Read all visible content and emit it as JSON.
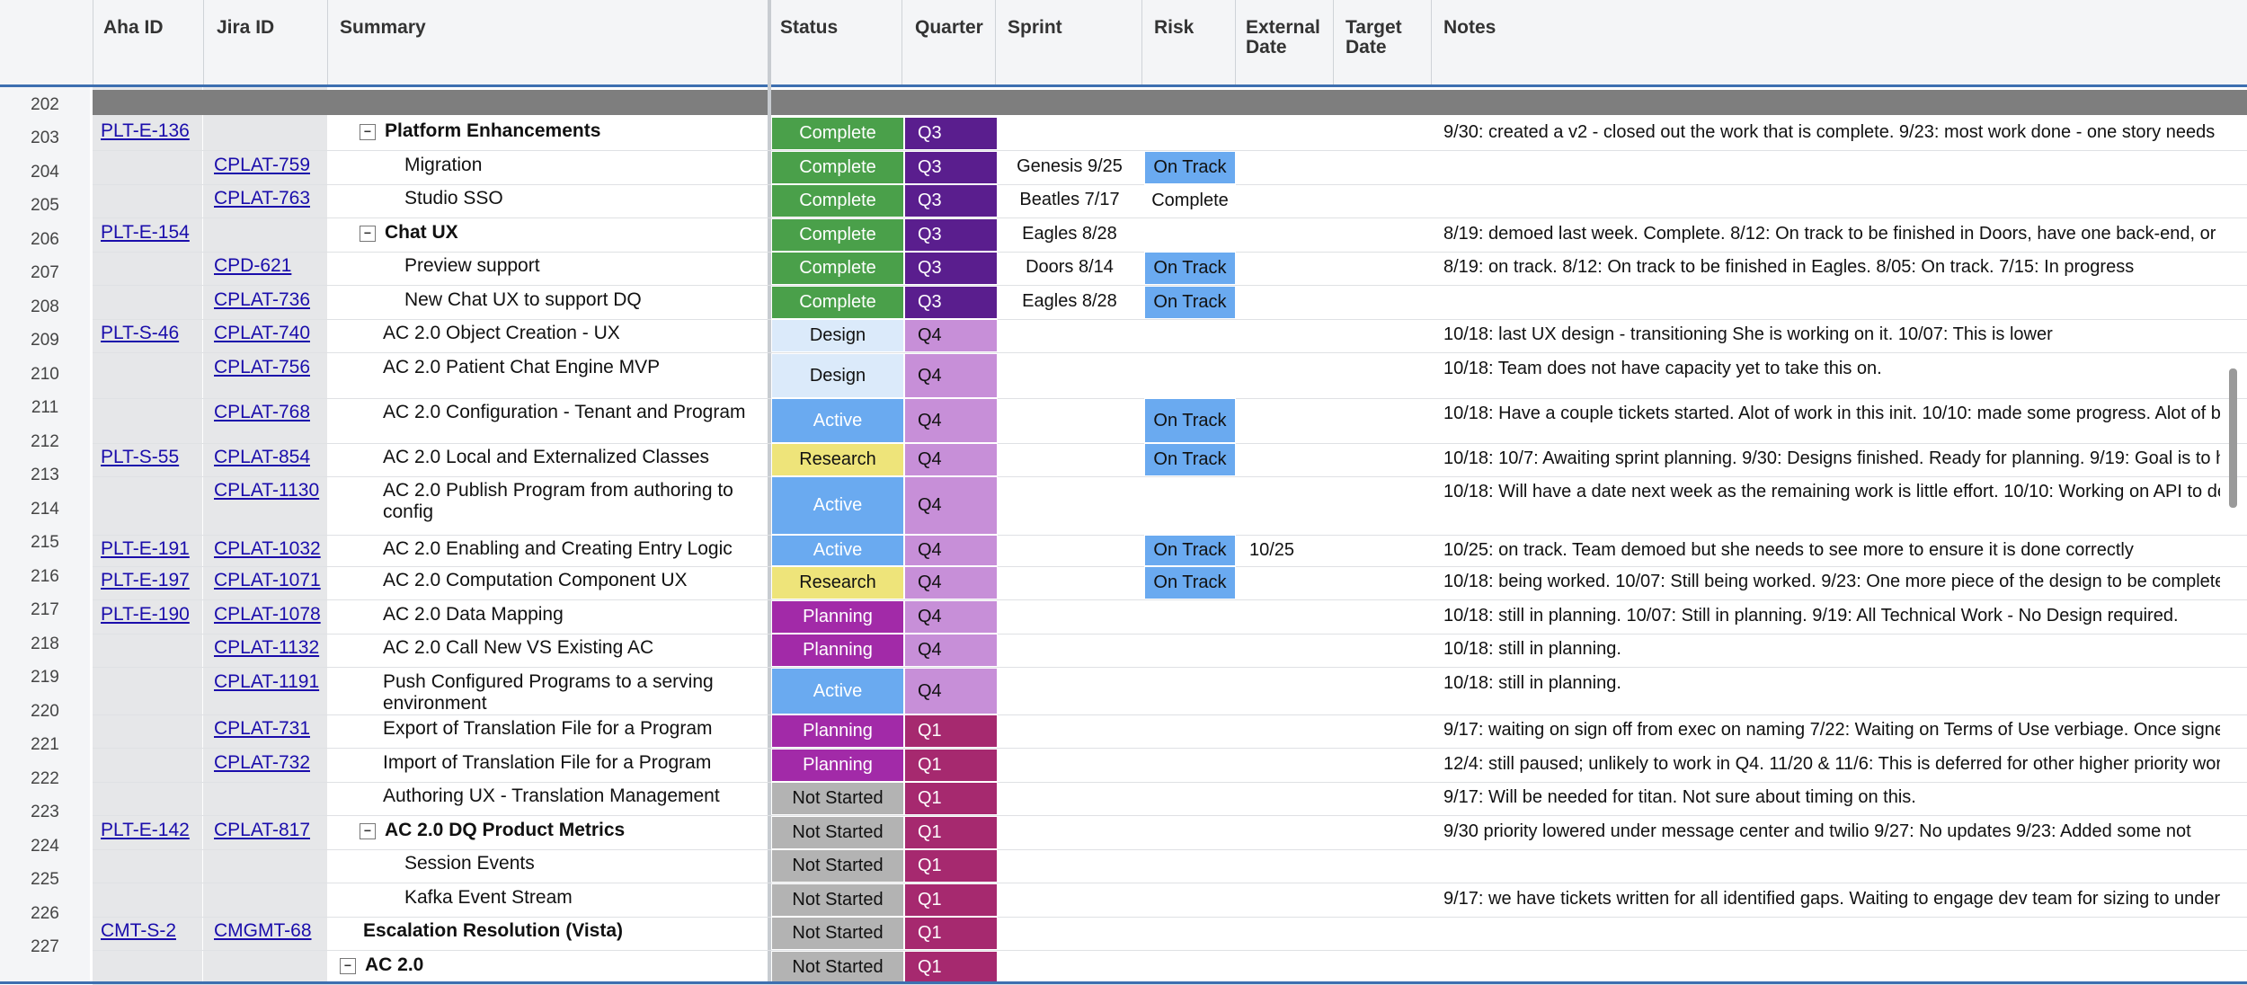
{
  "columns": {
    "aha_id": "Aha ID",
    "jira_id": "Jira ID",
    "summary": "Summary",
    "status": "Status",
    "quarter": "Quarter",
    "sprint": "Sprint",
    "risk": "Risk",
    "external_date": "External\nDate",
    "target_date": "Target\nDate",
    "notes": "Notes"
  },
  "colors": {
    "complete": "#4aa04a",
    "design": "#dbeafa",
    "active": "#6aaaf0",
    "research": "#eee47a",
    "planning": "#a22aa8",
    "not_started": "#b3b3b3",
    "q3": "#5a1e8e",
    "q4": "#c78fd8",
    "q1": "#a6296f",
    "on_track": "#6aaaf0"
  },
  "row_numbers": [
    "202",
    "203",
    "204",
    "205",
    "206",
    "207",
    "208",
    "209",
    "210",
    "211",
    "212",
    "213",
    "214",
    "215",
    "216",
    "217",
    "218",
    "219",
    "220",
    "221",
    "222",
    "223",
    "224",
    "225",
    "226",
    "227"
  ],
  "rows": [
    {
      "aha": "PLT-E-136",
      "jira": "",
      "summary": "Platform Enhancements",
      "bold": true,
      "toggle": "-",
      "indent": 1,
      "status": "Complete",
      "quarter": "Q3",
      "sprint": "",
      "risk": "",
      "ext": "",
      "notes": "9/30: created a v2 - closed out the work that is complete. 9/23: most work done - one story needs"
    },
    {
      "aha": "",
      "jira": "CPLAT-759",
      "summary": "Migration",
      "bold": false,
      "toggle": "",
      "indent": 2,
      "status": "Complete",
      "quarter": "Q3",
      "sprint": "Genesis 9/25",
      "risk": "On Track",
      "ext": "",
      "notes": ""
    },
    {
      "aha": "",
      "jira": "CPLAT-763",
      "summary": "Studio SSO",
      "bold": false,
      "toggle": "",
      "indent": 2,
      "status": "Complete",
      "quarter": "Q3",
      "sprint": "Beatles 7/17",
      "risk": "Complete",
      "ext": "",
      "notes": ""
    },
    {
      "aha": "PLT-E-154",
      "jira": "",
      "summary": "Chat UX",
      "bold": true,
      "toggle": "-",
      "indent": 1,
      "status": "Complete",
      "quarter": "Q3",
      "sprint": "Eagles 8/28",
      "risk": "",
      "ext": "",
      "notes": "8/19: demoed last week. Complete. 8/12: On track to be finished in Doors, have one back-end, or"
    },
    {
      "aha": "",
      "jira": "CPD-621",
      "summary": "Preview support",
      "bold": false,
      "toggle": "",
      "indent": 2,
      "status": "Complete",
      "quarter": "Q3",
      "sprint": "Doors 8/14",
      "risk": "On Track",
      "ext": "",
      "notes": "8/19: on track. 8/12: On track to be finished in Eagles. 8/05: On track. 7/15: In progress"
    },
    {
      "aha": "",
      "jira": "CPLAT-736",
      "summary": "New Chat UX to support DQ",
      "bold": false,
      "toggle": "",
      "indent": 2,
      "status": "Complete",
      "quarter": "Q3",
      "sprint": "Eagles 8/28",
      "risk": "On Track",
      "ext": "",
      "notes": ""
    },
    {
      "aha": "PLT-S-46",
      "jira": "CPLAT-740",
      "summary": "AC 2.0 Object Creation - UX",
      "bold": false,
      "toggle": "",
      "indent": 0,
      "status": "Design",
      "quarter": "Q4",
      "sprint": "",
      "risk": "",
      "ext": "",
      "notes": "10/18: last UX design - transitioning                            She is working on it. 10/07: This is lower"
    },
    {
      "aha": "",
      "jira": "CPLAT-756",
      "summary": "AC 2.0 Patient Chat Engine MVP",
      "bold": false,
      "toggle": "",
      "indent": 0,
      "status": "Design",
      "quarter": "Q4",
      "sprint": "",
      "risk": "",
      "ext": "",
      "notes": "10/18: Team does not have capacity yet to take this on."
    },
    {
      "aha": "",
      "jira": "CPLAT-768",
      "summary": "AC 2.0 Configuration - Tenant and Program",
      "bold": false,
      "toggle": "",
      "indent": 0,
      "status": "Active",
      "quarter": "Q4",
      "sprint": "",
      "risk": "On Track",
      "ext": "",
      "notes": "10/18: Have a couple tickets started. Alot of work in this init. 10/10: made some progress. Alot of b"
    },
    {
      "aha": "PLT-S-55",
      "jira": "CPLAT-854",
      "summary": "AC 2.0 Local and Externalized Classes",
      "bold": false,
      "toggle": "",
      "indent": 0,
      "status": "Research",
      "quarter": "Q4",
      "sprint": "",
      "risk": "On Track",
      "ext": "",
      "notes": "10/18: 10/7: Awaiting sprint planning. 9/30: Designs finished. Ready for planning. 9/19: Goal is to h"
    },
    {
      "aha": "",
      "jira": "CPLAT-1130",
      "summary": "AC 2.0 Publish Program from authoring to config",
      "bold": false,
      "toggle": "",
      "indent": 0,
      "status": "Active",
      "quarter": "Q4",
      "sprint": "",
      "risk": "",
      "ext": "",
      "notes": "10/18: Will have a date next week as the remaining work is little effort. 10/10: Working on API to de"
    },
    {
      "aha": "PLT-E-191",
      "jira": "CPLAT-1032",
      "summary": "AC 2.0 Enabling and Creating Entry Logic",
      "bold": false,
      "toggle": "",
      "indent": 0,
      "status": "Active",
      "quarter": "Q4",
      "sprint": "",
      "risk": "On Track",
      "ext": "10/25",
      "notes": "10/25: on track. Team demoed                   but she needs to see more to ensure it is done correctly"
    },
    {
      "aha": "PLT-E-197",
      "jira": "CPLAT-1071",
      "summary": "AC 2.0 Computation Component UX",
      "bold": false,
      "toggle": "",
      "indent": 0,
      "status": "Research",
      "quarter": "Q4",
      "sprint": "",
      "risk": "On Track",
      "ext": "",
      "notes": "10/18: being worked. 10/07: Still being worked. 9/23: One more piece of the design to be complete"
    },
    {
      "aha": "PLT-E-190",
      "jira": "CPLAT-1078",
      "summary": "AC 2.0 Data Mapping",
      "bold": false,
      "toggle": "",
      "indent": 0,
      "status": "Planning",
      "quarter": "Q4",
      "sprint": "",
      "risk": "",
      "ext": "",
      "notes": "10/18: still in planning. 10/07: Still in planning. 9/19: All Technical Work - No Design required."
    },
    {
      "aha": "",
      "jira": "CPLAT-1132",
      "summary": "AC 2.0 Call New VS Existing AC",
      "bold": false,
      "toggle": "",
      "indent": 0,
      "status": "Planning",
      "quarter": "Q4",
      "sprint": "",
      "risk": "",
      "ext": "",
      "notes": "10/18: still in planning."
    },
    {
      "aha": "",
      "jira": "CPLAT-1191",
      "summary": "Push Configured Programs to a serving environment",
      "bold": false,
      "toggle": "",
      "indent": 0,
      "status": "Active",
      "quarter": "Q4",
      "sprint": "",
      "risk": "",
      "ext": "",
      "notes": "10/18: still in planning."
    },
    {
      "aha": "",
      "jira": "CPLAT-731",
      "summary": "Export of Translation File for a Program",
      "bold": false,
      "toggle": "",
      "indent": 0,
      "status": "Planning",
      "quarter": "Q1",
      "sprint": "",
      "risk": "",
      "ext": "",
      "notes": "9/17: waiting on sign off from exec on naming 7/22: Waiting on Terms of Use verbiage. Once signe"
    },
    {
      "aha": "",
      "jira": "CPLAT-732",
      "summary": "Import of Translation File for a Program",
      "bold": false,
      "toggle": "",
      "indent": 0,
      "status": "Planning",
      "quarter": "Q1",
      "sprint": "",
      "risk": "",
      "ext": "",
      "notes": "12/4: still paused; unlikely to work in Q4. 11/20 & 11/6: This is deferred for other higher priority wor"
    },
    {
      "aha": "",
      "jira": "",
      "summary": "Authoring UX - Translation Management",
      "bold": false,
      "toggle": "",
      "indent": 0,
      "status": "Not Started",
      "quarter": "Q1",
      "sprint": "",
      "risk": "",
      "ext": "",
      "notes": "9/17: Will be needed for titan. Not sure about timing on this."
    },
    {
      "aha": "PLT-E-142",
      "jira": "CPLAT-817",
      "summary": "AC 2.0 DQ Product Metrics",
      "bold": true,
      "toggle": "-",
      "indent": 1,
      "status": "Not Started",
      "quarter": "Q1",
      "sprint": "",
      "risk": "",
      "ext": "",
      "notes": "9/30       priority lowered under message center and twilio 9/27: No updates 9/23: Added some not"
    },
    {
      "aha": "",
      "jira": "",
      "summary": "Session Events",
      "bold": false,
      "toggle": "",
      "indent": 2,
      "status": "Not Started",
      "quarter": "Q1",
      "sprint": "",
      "risk": "",
      "ext": "",
      "notes": ""
    },
    {
      "aha": "",
      "jira": "",
      "summary": "Kafka Event Stream",
      "bold": false,
      "toggle": "",
      "indent": 2,
      "status": "Not Started",
      "quarter": "Q1",
      "sprint": "",
      "risk": "",
      "ext": "",
      "notes": "9/17: we have tickets written for all identified gaps. Waiting to engage dev team for sizing to under"
    },
    {
      "aha": "CMT-S-2",
      "jira": "CMGMT-68",
      "summary": "Escalation Resolution (Vista)",
      "bold": true,
      "toggle": "",
      "indent": -1,
      "status": "Not Started",
      "quarter": "Q1",
      "sprint": "",
      "risk": "",
      "ext": "",
      "notes": ""
    },
    {
      "aha": "",
      "jira": "",
      "summary": "AC 2.0",
      "bold": true,
      "toggle": "-",
      "indent": -2,
      "status": "Not Started",
      "quarter": "Q1",
      "sprint": "",
      "risk": "",
      "ext": "",
      "notes": ""
    }
  ]
}
